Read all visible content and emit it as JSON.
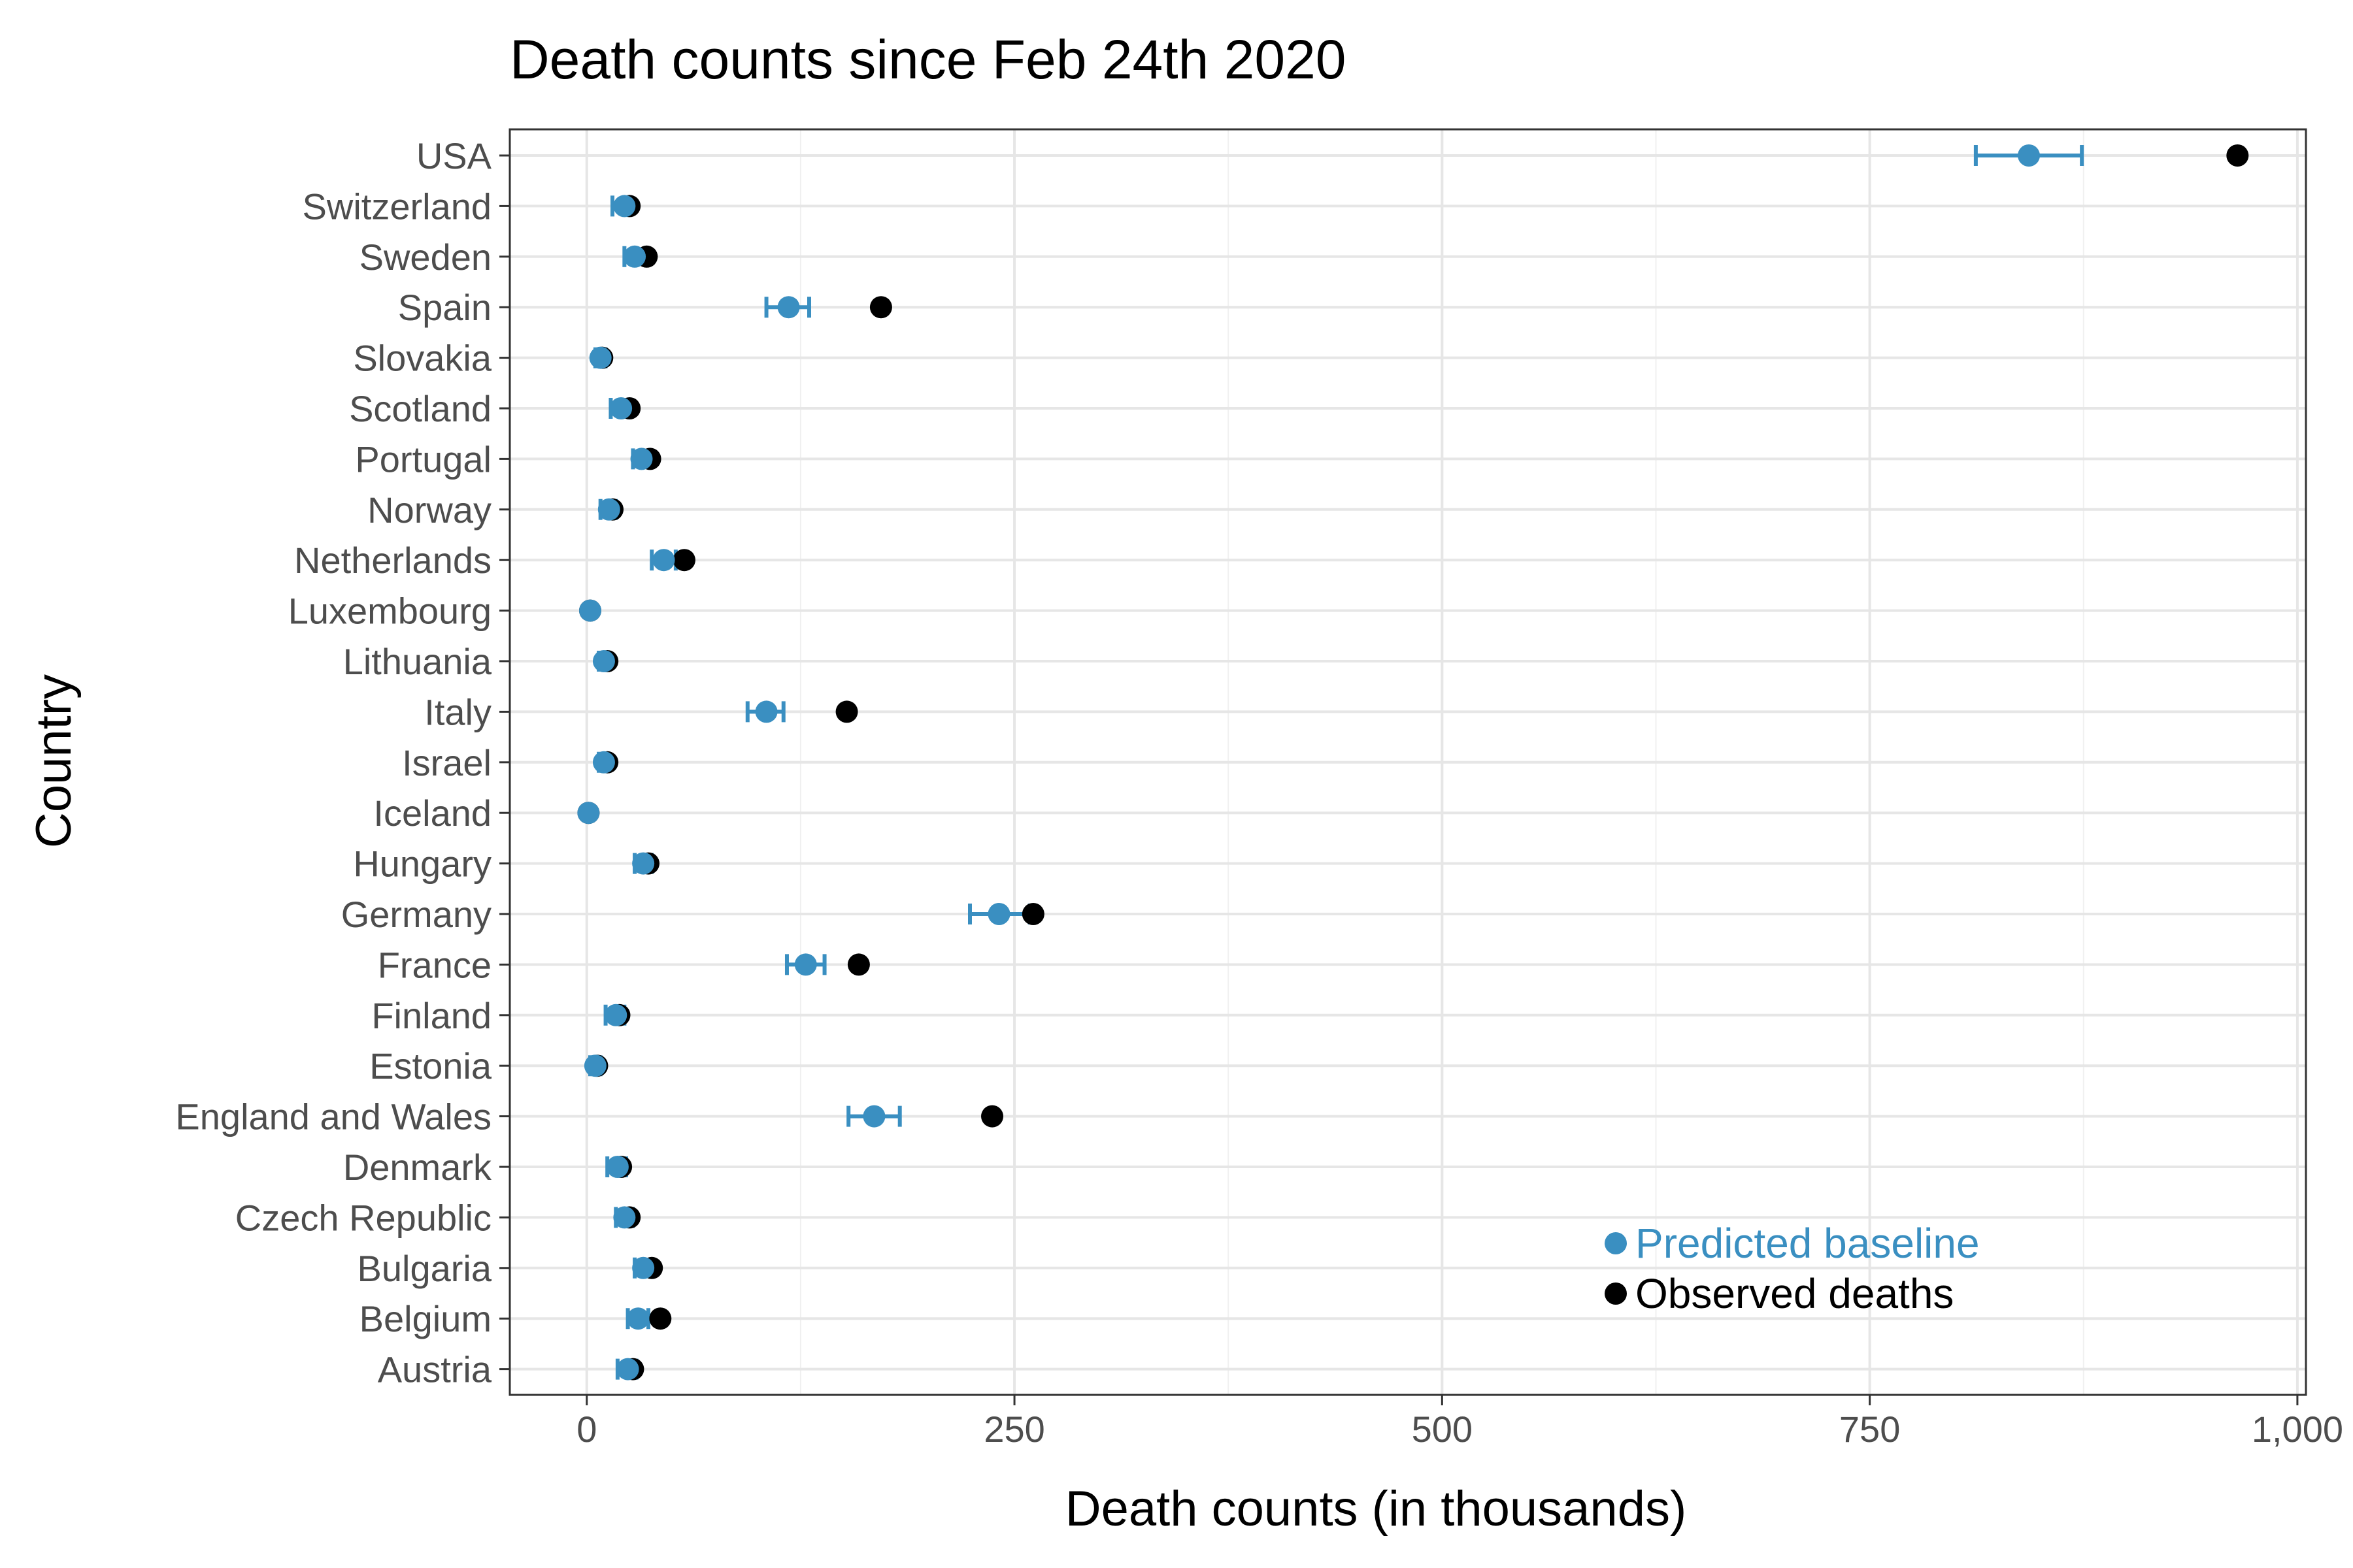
{
  "chart_data": {
    "type": "scatter",
    "title": "Death counts since Feb 24th 2020",
    "xlabel": "Death counts (in thousands)",
    "ylabel": "Country",
    "xlim": [
      -45,
      1005
    ],
    "x_ticks": [
      0,
      250,
      500,
      750,
      1000
    ],
    "x_tick_labels": [
      "0",
      "250",
      "500",
      "750",
      "1,000"
    ],
    "grid": true,
    "legend_position": "bottom-right",
    "colors": {
      "predicted": "#3a8fc1",
      "observed": "#000000"
    },
    "categories": [
      "USA",
      "Switzerland",
      "Sweden",
      "Spain",
      "Slovakia",
      "Scotland",
      "Portugal",
      "Norway",
      "Netherlands",
      "Luxembourg",
      "Lithuania",
      "Italy",
      "Israel",
      "Iceland",
      "Hungary",
      "Germany",
      "France",
      "Finland",
      "Estonia",
      "England and Wales",
      "Denmark",
      "Czech Republic",
      "Bulgaria",
      "Belgium",
      "Austria"
    ],
    "series": [
      {
        "name": "Predicted baseline",
        "values": [
          843,
          22,
          28,
          118,
          8,
          20,
          32,
          13,
          45,
          2,
          10,
          105,
          10,
          1,
          33,
          241,
          128,
          17,
          5,
          168,
          18,
          22,
          33,
          30,
          24
        ],
        "lower": [
          812,
          15,
          22,
          105,
          5,
          14,
          27,
          8,
          38,
          1,
          7,
          94,
          7,
          0,
          28,
          224,
          117,
          11,
          2,
          153,
          12,
          17,
          28,
          24,
          18
        ],
        "upper": [
          874,
          26,
          34,
          130,
          11,
          25,
          37,
          17,
          52,
          3,
          13,
          115,
          13,
          2,
          38,
          259,
          139,
          22,
          8,
          183,
          23,
          27,
          38,
          36,
          29
        ]
      },
      {
        "name": "Observed deaths",
        "values": [
          965,
          25,
          35,
          172,
          9,
          25,
          37,
          15,
          57,
          2,
          12,
          152,
          12,
          1,
          36,
          261,
          159,
          19,
          6,
          237,
          20,
          25,
          38,
          43,
          27
        ]
      }
    ]
  }
}
